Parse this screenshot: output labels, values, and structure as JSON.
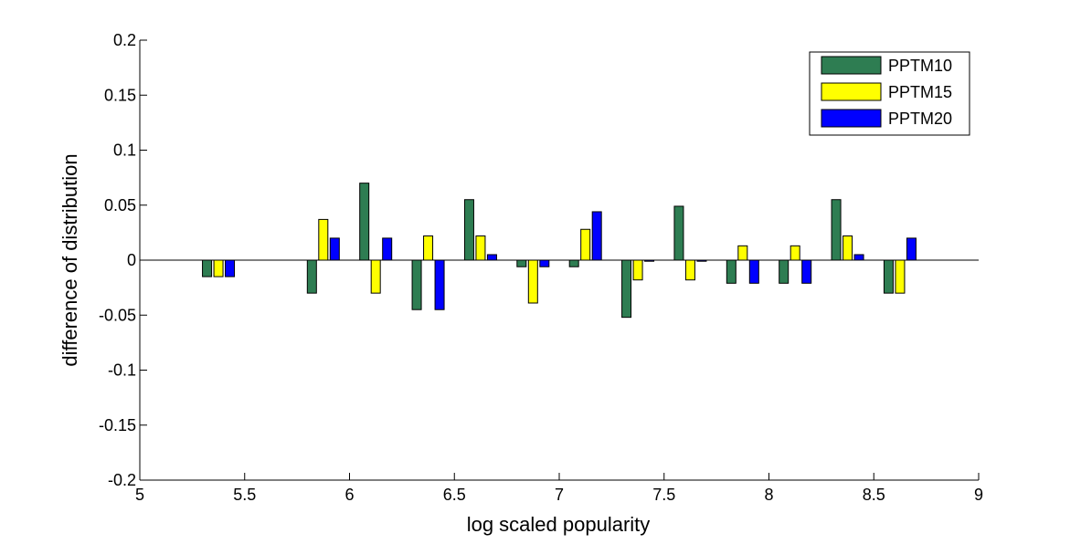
{
  "chart_data": {
    "type": "bar",
    "title": "",
    "xlabel": "log scaled popularity",
    "ylabel": "difference of distribution",
    "xlim": [
      5,
      9
    ],
    "ylim": [
      -0.2,
      0.2
    ],
    "xticks": [
      "5",
      "5.5",
      "6",
      "6.5",
      "7",
      "7.5",
      "8",
      "8.5",
      "9"
    ],
    "yticks": [
      "-0.2",
      "-0.15",
      "-0.1",
      "-0.05",
      "0",
      "0.05",
      "0.1",
      "0.15",
      "0.2"
    ],
    "grid": false,
    "legend_position": "top-right",
    "x": [
      5.375,
      5.875,
      6.125,
      6.375,
      6.625,
      6.875,
      7.125,
      7.375,
      7.625,
      7.875,
      8.125,
      8.375,
      8.625
    ],
    "series": [
      {
        "name": "PPTM10",
        "color": "#2e7d52",
        "values": [
          -0.015,
          -0.03,
          0.07,
          -0.045,
          0.055,
          -0.006,
          -0.006,
          -0.052,
          0.049,
          -0.021,
          -0.021,
          0.055,
          -0.03
        ]
      },
      {
        "name": "PPTM15",
        "color": "#ffff00",
        "values": [
          -0.015,
          0.037,
          -0.03,
          0.022,
          0.022,
          -0.039,
          0.028,
          -0.018,
          -0.018,
          0.013,
          0.013,
          0.022,
          -0.03
        ]
      },
      {
        "name": "PPTM20",
        "color": "#0000ff",
        "values": [
          -0.015,
          0.02,
          0.02,
          -0.045,
          0.005,
          -0.006,
          0.044,
          -0.001,
          -0.001,
          -0.021,
          -0.021,
          0.005,
          0.02
        ]
      }
    ]
  }
}
